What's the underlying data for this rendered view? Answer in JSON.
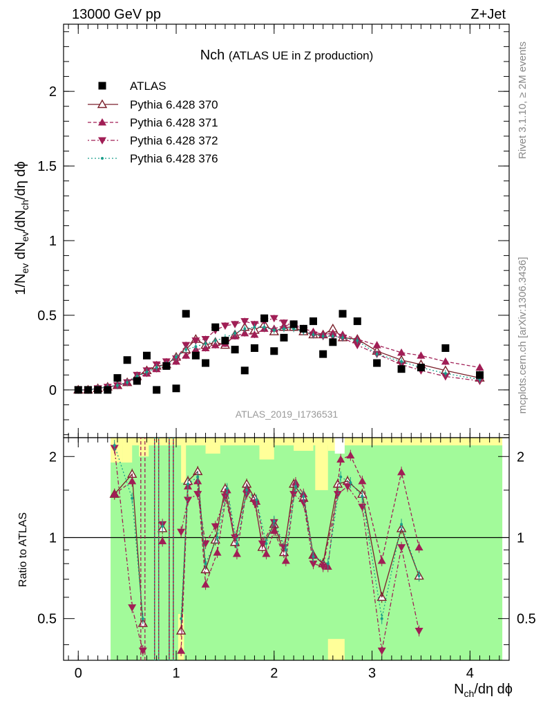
{
  "header": {
    "left": "13000 GeV pp",
    "right": "Z+Jet"
  },
  "side_text": {
    "rivet": "Rivet 3.1.10, ≥ 2M events",
    "mcplots": "mcplots.cern.ch [arXiv:1306.3436]"
  },
  "watermark": "ATLAS_2019_I1736531",
  "chart_data": {
    "type": "scatter",
    "title": "Nch",
    "subtitle": "(ATLAS UE in Z production)",
    "xlabel": "N_ch/dη dϕ",
    "ylabel": "1/N_ev dN_ev/dN_ch/dη dϕ",
    "ratio_ylabel": "Ratio to ATLAS",
    "xlim": [
      -0.15,
      4.4
    ],
    "ylim": [
      -0.32,
      2.45
    ],
    "ratio_ylim": [
      0.35,
      2.35
    ],
    "xticks": [
      "0",
      "1",
      "2",
      "3",
      "4"
    ],
    "yticks": [
      "0",
      "0.5",
      "1",
      "1.5",
      "2"
    ],
    "ratio_yticks": [
      "0.5",
      "1",
      "2"
    ],
    "x": [
      0.0,
      0.1,
      0.2,
      0.3,
      0.4,
      0.5,
      0.6,
      0.7,
      0.8,
      0.9,
      1.0,
      1.1,
      1.2,
      1.3,
      1.4,
      1.5,
      1.6,
      1.7,
      1.8,
      1.9,
      2.0,
      2.1,
      2.2,
      2.3,
      2.4,
      2.5,
      2.6,
      2.7,
      2.85,
      3.05,
      3.3,
      3.5,
      3.75,
      4.1
    ],
    "atlas": [
      0.0,
      0.0,
      0.0,
      0.0,
      0.08,
      0.2,
      0.06,
      0.23,
      0.0,
      0.16,
      0.01,
      0.51,
      0.23,
      0.18,
      0.42,
      0.33,
      0.27,
      0.13,
      0.28,
      0.48,
      0.26,
      0.35,
      0.44,
      0.41,
      0.46,
      0.24,
      0.32,
      0.51,
      0.46,
      0.18,
      0.14,
      0.15,
      0.28,
      0.1
    ],
    "series": [
      {
        "name": "Pythia 6.428 370",
        "color": "#7a1f2a",
        "dash": "none",
        "marker": "triangle-up-open",
        "values": [
          0.0,
          0.0,
          0.01,
          0.02,
          0.03,
          0.05,
          0.09,
          0.13,
          0.16,
          0.17,
          0.22,
          0.27,
          0.34,
          0.3,
          0.32,
          0.3,
          0.37,
          0.42,
          0.4,
          0.44,
          0.39,
          0.42,
          0.42,
          0.39,
          0.37,
          0.37,
          0.41,
          0.35,
          0.34,
          0.26,
          0.2,
          0.17,
          0.13,
          0.08
        ],
        "ratio": [
          1.45,
          1.72,
          0.48,
          null,
          1.08,
          null,
          0.45,
          1.62,
          1.76,
          0.76,
          0.98,
          1.52,
          0.96,
          1.58,
          1.4,
          0.92,
          1.12,
          0.88,
          1.58,
          1.4,
          0.86,
          0.8,
          1.58,
          1.62,
          1.45,
          0.6,
          1.08,
          0.72
        ]
      },
      {
        "name": "Pythia 6.428 371",
        "color": "#a01e55",
        "dash": "5,3",
        "marker": "triangle-up",
        "values": [
          0.0,
          0.0,
          0.01,
          0.02,
          0.03,
          0.05,
          0.08,
          0.11,
          0.14,
          0.16,
          0.19,
          0.23,
          0.27,
          0.28,
          0.3,
          0.31,
          0.36,
          0.38,
          0.37,
          0.41,
          0.41,
          0.43,
          0.44,
          0.41,
          0.39,
          0.37,
          0.38,
          0.37,
          0.34,
          0.3,
          0.25,
          0.23,
          0.19,
          0.15
        ],
        "ratio": [
          1.45,
          1.62,
          null,
          null,
          0.97,
          null,
          0.38,
          1.55,
          1.62,
          0.67,
          0.88,
          1.5,
          0.87,
          1.52,
          1.36,
          0.87,
          1.06,
          0.82,
          1.6,
          1.45,
          0.86,
          0.78,
          1.95,
          2.02,
          1.62,
          0.82,
          1.75,
          0.92
        ]
      },
      {
        "name": "Pythia 6.428 372",
        "color": "#a01e55",
        "dash": "2,3,6,3",
        "marker": "triangle-down",
        "values": [
          0.0,
          0.0,
          0.01,
          0.02,
          0.03,
          0.05,
          0.1,
          0.13,
          0.17,
          0.19,
          0.21,
          0.3,
          0.33,
          0.34,
          0.4,
          0.43,
          0.44,
          0.46,
          0.44,
          0.46,
          0.48,
          0.45,
          0.43,
          0.4,
          0.37,
          0.36,
          0.36,
          0.35,
          0.3,
          0.24,
          0.17,
          0.13,
          0.09,
          0.06
        ],
        "ratio": [
          2.15,
          0.55,
          0.38,
          null,
          1.12,
          null,
          1.05,
          1.38,
          1.45,
          0.95,
          1.1,
          1.42,
          1.0,
          1.45,
          1.35,
          0.95,
          1.14,
          0.92,
          1.45,
          1.35,
          0.8,
          0.78,
          1.45,
          1.55,
          1.3,
          0.38,
          0.92,
          0.45
        ]
      },
      {
        "name": "Pythia 6.428 376",
        "color": "#1a9e8a",
        "dash": "2,3",
        "marker": "dot",
        "values": [
          0.0,
          0.0,
          0.01,
          0.02,
          0.03,
          0.05,
          0.09,
          0.12,
          0.15,
          0.17,
          0.22,
          0.27,
          0.29,
          0.31,
          0.33,
          0.35,
          0.38,
          0.41,
          0.42,
          0.42,
          0.4,
          0.41,
          0.41,
          0.39,
          0.37,
          0.36,
          0.36,
          0.35,
          0.33,
          0.24,
          0.19,
          0.15,
          0.11,
          0.07
        ],
        "ratio": [
          2.2,
          1.4,
          0.5,
          null,
          1.1,
          null,
          0.5,
          1.58,
          1.68,
          0.8,
          1.0,
          1.52,
          0.95,
          1.5,
          1.38,
          0.95,
          1.15,
          0.9,
          1.55,
          1.42,
          0.85,
          0.8,
          1.68,
          1.6,
          1.42,
          0.5,
          1.12,
          0.72
        ]
      }
    ],
    "ratio_x": [
      0.37,
      0.55,
      0.66,
      0.8,
      0.86,
      0.95,
      1.05,
      1.12,
      1.22,
      1.3,
      1.4,
      1.5,
      1.6,
      1.72,
      1.8,
      1.88,
      2.0,
      2.1,
      2.2,
      2.3,
      2.4,
      2.5,
      2.65,
      2.75,
      2.9,
      3.1,
      3.3,
      3.48
    ],
    "ratio_x_alt": [
      0.37,
      0.55,
      0.66,
      0.8,
      0.86,
      0.95,
      1.05,
      1.12,
      1.22,
      1.3,
      1.42,
      1.52,
      1.62,
      1.72,
      1.82,
      1.92,
      2.0,
      2.12,
      2.22,
      2.3,
      2.4,
      2.55,
      2.68,
      2.78,
      2.9,
      3.1,
      3.3,
      3.48
    ]
  }
}
